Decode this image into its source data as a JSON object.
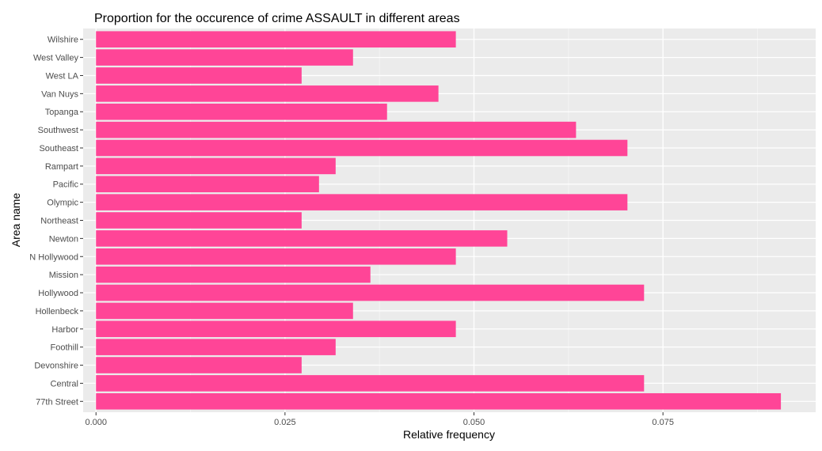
{
  "chart_data": {
    "type": "bar",
    "orientation": "horizontal",
    "title": "Proportion for the occurence of crime ASSAULT in different areas",
    "xlabel": "Relative frequency",
    "ylabel": "Area name",
    "categories": [
      "77th Street",
      "Central",
      "Devonshire",
      "Foothill",
      "Harbor",
      "Hollenbeck",
      "Hollywood",
      "Mission",
      "N Hollywood",
      "Newton",
      "Northeast",
      "Olympic",
      "Pacific",
      "Rampart",
      "Southeast",
      "Southwest",
      "Topanga",
      "Van Nuys",
      "West LA",
      "West Valley",
      "Wilshire"
    ],
    "values": [
      0.0906,
      0.0725,
      0.0272,
      0.0317,
      0.0476,
      0.034,
      0.0725,
      0.0363,
      0.0476,
      0.0544,
      0.0272,
      0.0703,
      0.0295,
      0.0317,
      0.0703,
      0.0635,
      0.0385,
      0.0453,
      0.0272,
      0.034,
      0.0476
    ],
    "xlim": [
      -0.0017,
      0.0952
    ],
    "xticks": [
      0.0,
      0.025,
      0.05,
      0.075
    ],
    "xtick_labels": [
      "0.000",
      "0.025",
      "0.050",
      "0.075"
    ],
    "grid": true,
    "legend": "none",
    "colors": {
      "bar": "#ff4597",
      "panel_background": "#ebebeb",
      "grid_major": "#ffffff",
      "grid_minor": "#f5f5f5",
      "text": "#4d4d4d"
    }
  }
}
